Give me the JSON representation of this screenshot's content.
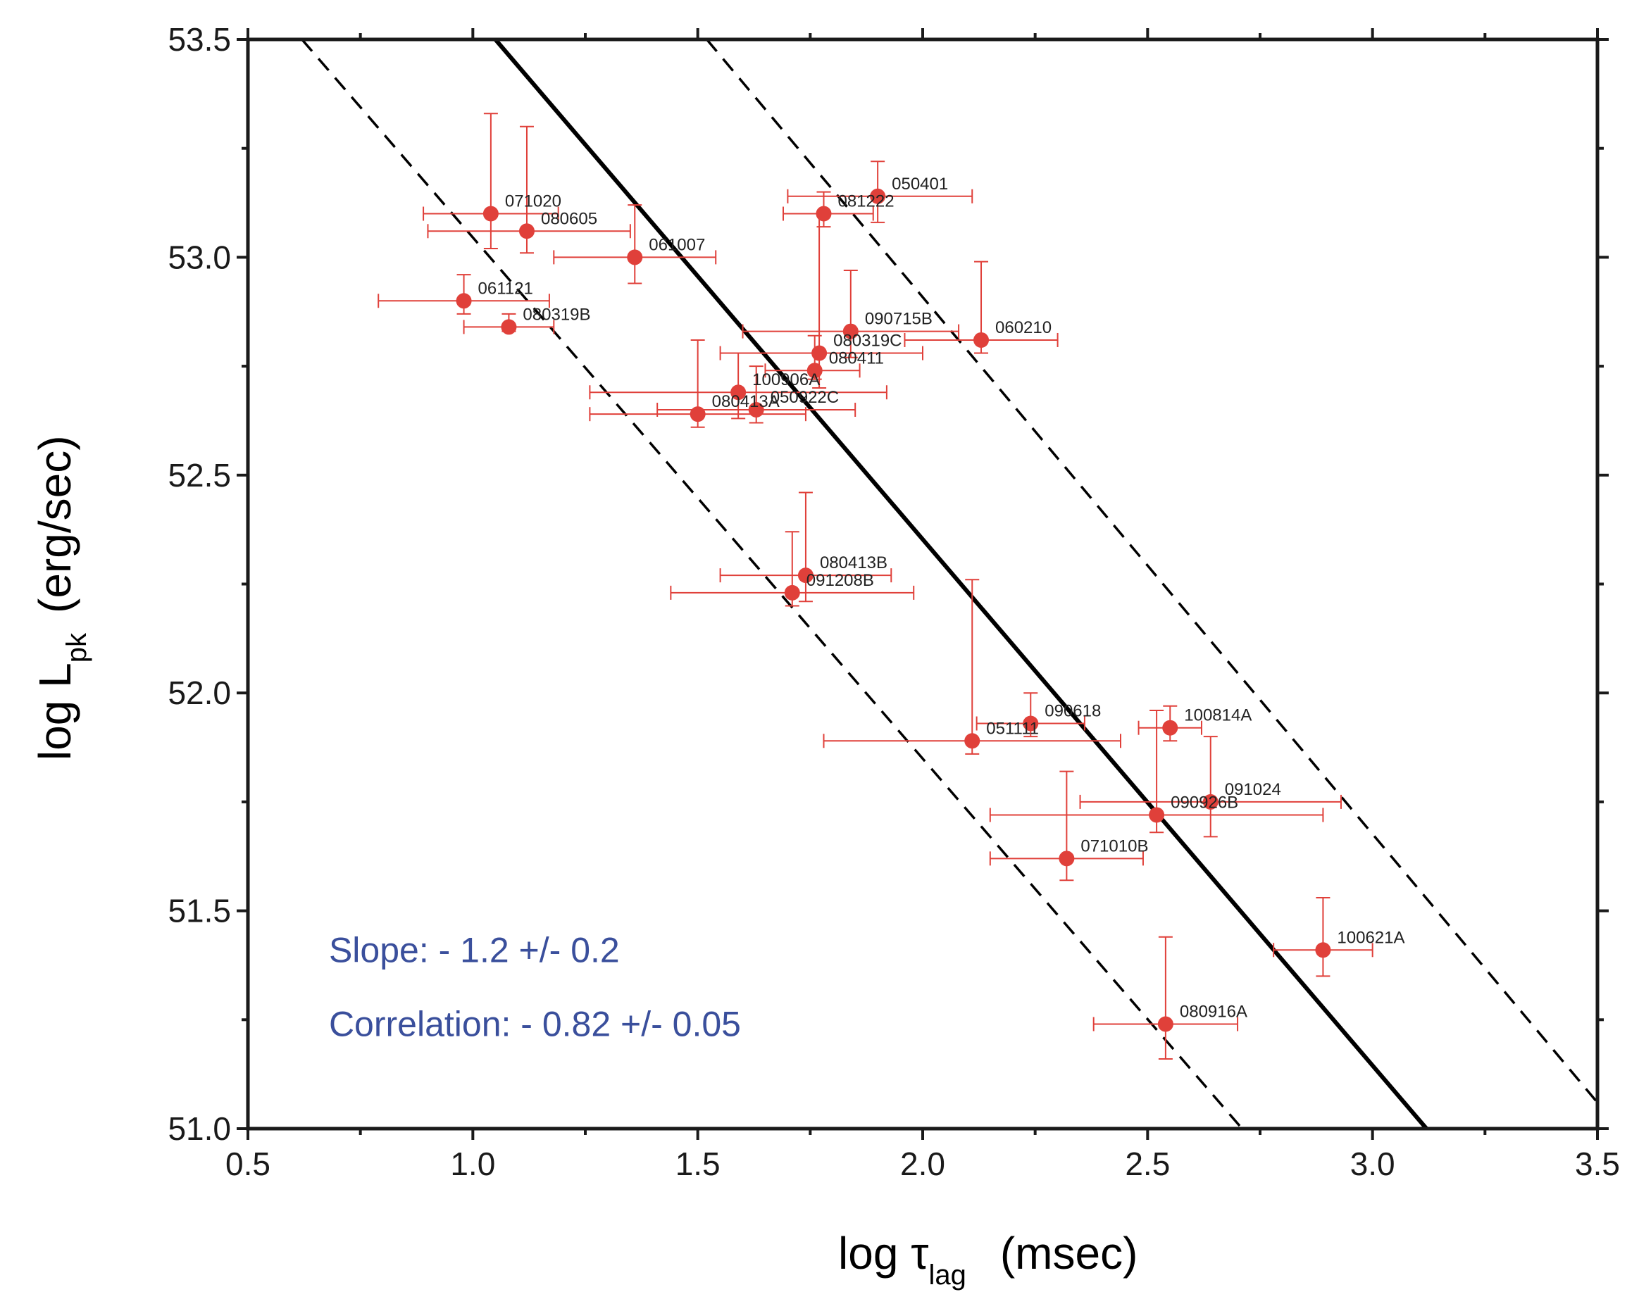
{
  "chart_data": {
    "type": "scatter",
    "title": "",
    "xlabel": "log τ",
    "xlabel_sub": "lag",
    "xlabel_unit": "(msec)",
    "ylabel": "log L",
    "ylabel_sub": "pk",
    "ylabel_unit": "(erg/sec)",
    "xlim": [
      0.5,
      3.5
    ],
    "ylim": [
      51.0,
      53.5
    ],
    "xticks": [
      "0.5",
      "1.0",
      "1.5",
      "2.0",
      "2.5",
      "3.0",
      "3.5"
    ],
    "yticks": [
      "51.0",
      "51.5",
      "52.0",
      "52.5",
      "53.0",
      "53.5"
    ],
    "x_minor_step": 0.25,
    "y_minor_step": 0.25,
    "points": [
      {
        "name": "071020",
        "x": 1.04,
        "y": 53.1,
        "xerr": [
          0.15,
          0.15
        ],
        "yerr": [
          0.08,
          0.23
        ]
      },
      {
        "name": "080605",
        "x": 1.12,
        "y": 53.06,
        "xerr": [
          0.22,
          0.23
        ],
        "yerr": [
          0.05,
          0.24
        ]
      },
      {
        "name": "061007",
        "x": 1.36,
        "y": 53.0,
        "xerr": [
          0.18,
          0.18
        ],
        "yerr": [
          0.06,
          0.12
        ]
      },
      {
        "name": "061121",
        "x": 0.98,
        "y": 52.9,
        "xerr": [
          0.19,
          0.19
        ],
        "yerr": [
          0.03,
          0.06
        ]
      },
      {
        "name": "080319B",
        "x": 1.08,
        "y": 52.84,
        "xerr": [
          0.1,
          0.1
        ],
        "yerr": [
          0.01,
          0.03
        ]
      },
      {
        "name": "050401",
        "x": 1.9,
        "y": 53.14,
        "xerr": [
          0.2,
          0.21
        ],
        "yerr": [
          0.06,
          0.08
        ]
      },
      {
        "name": "081222",
        "x": 1.78,
        "y": 53.1,
        "xerr": [
          0.09,
          0.11
        ],
        "yerr": [
          0.03,
          0.05
        ]
      },
      {
        "name": "090715B",
        "x": 1.84,
        "y": 52.83,
        "xerr": [
          0.24,
          0.24
        ],
        "yerr": [
          0.06,
          0.14
        ]
      },
      {
        "name": "060210",
        "x": 2.13,
        "y": 52.81,
        "xerr": [
          0.17,
          0.17
        ],
        "yerr": [
          0.03,
          0.18
        ]
      },
      {
        "name": "080319C",
        "x": 1.77,
        "y": 52.78,
        "xerr": [
          0.22,
          0.23
        ],
        "yerr": [
          0.08,
          0.32
        ]
      },
      {
        "name": "080411",
        "x": 1.76,
        "y": 52.74,
        "xerr": [
          0.11,
          0.1
        ],
        "yerr": [
          0.02,
          0.08
        ]
      },
      {
        "name": "100906A",
        "x": 1.59,
        "y": 52.69,
        "xerr": [
          0.33,
          0.33
        ],
        "yerr": [
          0.06,
          0.09
        ]
      },
      {
        "name": "080413A",
        "x": 1.5,
        "y": 52.64,
        "xerr": [
          0.24,
          0.24
        ],
        "yerr": [
          0.03,
          0.17
        ]
      },
      {
        "name": "050922C",
        "x": 1.63,
        "y": 52.65,
        "xerr": [
          0.22,
          0.22
        ],
        "yerr": [
          0.03,
          0.1
        ]
      },
      {
        "name": "080413B",
        "x": 1.74,
        "y": 52.27,
        "xerr": [
          0.19,
          0.19
        ],
        "yerr": [
          0.06,
          0.19
        ]
      },
      {
        "name": "091208B",
        "x": 1.71,
        "y": 52.23,
        "xerr": [
          0.27,
          0.27
        ],
        "yerr": [
          0.03,
          0.14
        ]
      },
      {
        "name": "090618",
        "x": 2.24,
        "y": 51.93,
        "xerr": [
          0.12,
          0.12
        ],
        "yerr": [
          0.03,
          0.07
        ]
      },
      {
        "name": "051111",
        "x": 2.11,
        "y": 51.89,
        "xerr": [
          0.33,
          0.33
        ],
        "yerr": [
          0.03,
          0.37
        ]
      },
      {
        "name": "100814A",
        "x": 2.55,
        "y": 51.92,
        "xerr": [
          0.07,
          0.07
        ],
        "yerr": [
          0.03,
          0.05
        ]
      },
      {
        "name": "091024",
        "x": 2.64,
        "y": 51.75,
        "xerr": [
          0.29,
          0.29
        ],
        "yerr": [
          0.08,
          0.15
        ]
      },
      {
        "name": "090926B",
        "x": 2.52,
        "y": 51.72,
        "xerr": [
          0.37,
          0.37
        ],
        "yerr": [
          0.04,
          0.24
        ]
      },
      {
        "name": "071010B",
        "x": 2.32,
        "y": 51.62,
        "xerr": [
          0.17,
          0.17
        ],
        "yerr": [
          0.05,
          0.2
        ]
      },
      {
        "name": "100621A",
        "x": 2.89,
        "y": 51.41,
        "xerr": [
          0.11,
          0.11
        ],
        "yerr": [
          0.06,
          0.12
        ]
      },
      {
        "name": "080916A",
        "x": 2.54,
        "y": 51.24,
        "xerr": [
          0.16,
          0.16
        ],
        "yerr": [
          0.08,
          0.2
        ]
      }
    ],
    "lines": [
      {
        "name": "best-fit",
        "style": "solid",
        "x": [
          1.05,
          3.12
        ],
        "y": [
          53.5,
          51.0
        ]
      },
      {
        "name": "lower-bound",
        "style": "dashed",
        "x": [
          0.62,
          2.71
        ],
        "y": [
          53.5,
          51.0
        ]
      },
      {
        "name": "upper-bound",
        "style": "dashed",
        "x": [
          1.52,
          3.5
        ],
        "y": [
          53.5,
          51.06
        ]
      }
    ],
    "annotations": [
      {
        "text": "Slope:  - 1.2 +/- 0.2",
        "x": 0.68,
        "y": 51.41
      },
      {
        "text": "Correlation:  - 0.82 +/- 0.05",
        "x": 0.68,
        "y": 51.24
      }
    ]
  },
  "colors": {
    "points": "#e0403a",
    "annotation": "#3a4f9c",
    "axes": "#1a1a1a"
  }
}
